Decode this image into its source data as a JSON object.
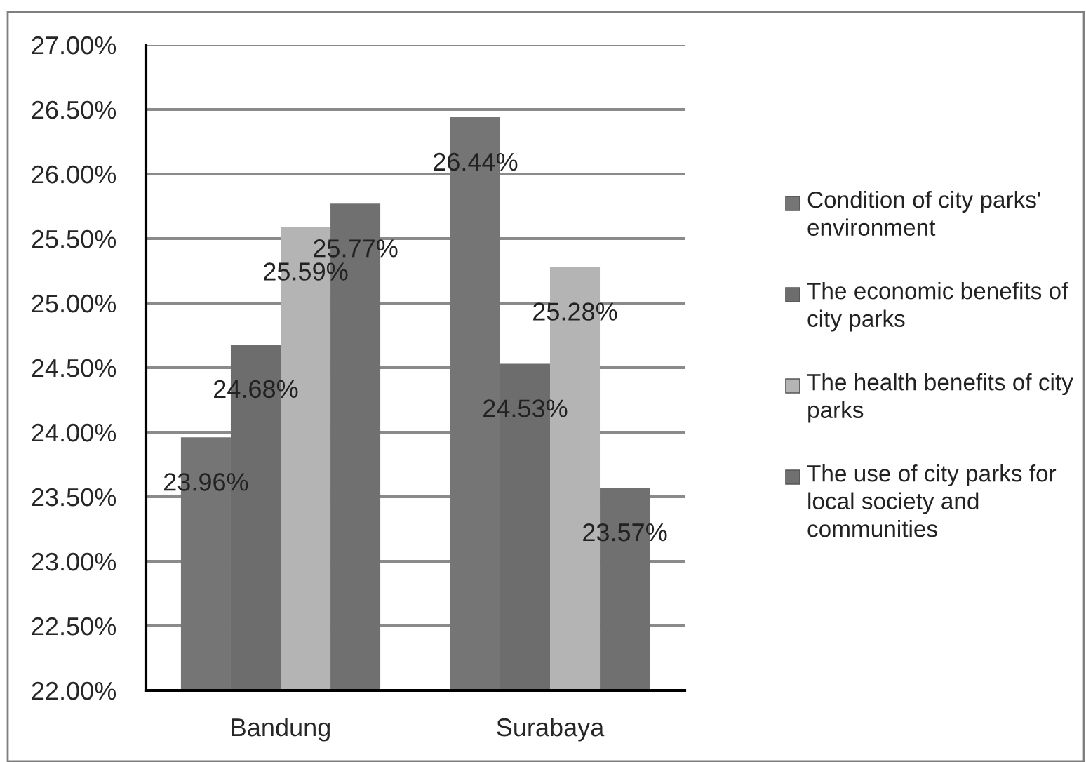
{
  "chart_data": {
    "type": "bar",
    "categories": [
      "Bandung",
      "Surabaya"
    ],
    "series": [
      {
        "name": "Condition of city parks' environment",
        "color": "#757575",
        "values": [
          23.96,
          26.44
        ],
        "value_labels": [
          "23.96%",
          "26.44%"
        ]
      },
      {
        "name": "The economic benefits of city parks",
        "color": "#6d6d6d",
        "values": [
          24.68,
          24.53
        ],
        "value_labels": [
          "24.68%",
          "24.53%"
        ]
      },
      {
        "name": "The health benefits of city parks",
        "color": "#b4b4b4",
        "values": [
          25.59,
          25.28
        ],
        "value_labels": [
          "25.59%",
          "25.28%"
        ]
      },
      {
        "name": "The use of city parks for local society and communities",
        "color": "#707070",
        "values": [
          25.77,
          23.57
        ],
        "value_labels": [
          "25.77%",
          "23.57%"
        ]
      }
    ],
    "ylim": [
      22,
      27
    ],
    "yticks": [
      {
        "value": 22,
        "label": "22.00%"
      },
      {
        "value": 22.5,
        "label": "22.50%"
      },
      {
        "value": 23,
        "label": "23.00%"
      },
      {
        "value": 23.5,
        "label": "23.50%"
      },
      {
        "value": 24,
        "label": "24.00%"
      },
      {
        "value": 24.5,
        "label": "24.50%"
      },
      {
        "value": 25,
        "label": "25.00%"
      },
      {
        "value": 25.5,
        "label": "25.50%"
      },
      {
        "value": 26,
        "label": "26.00%"
      },
      {
        "value": 26.5,
        "label": "26.50%"
      },
      {
        "value": 27,
        "label": "27.00%"
      }
    ],
    "grid": "y",
    "legend": "right"
  }
}
